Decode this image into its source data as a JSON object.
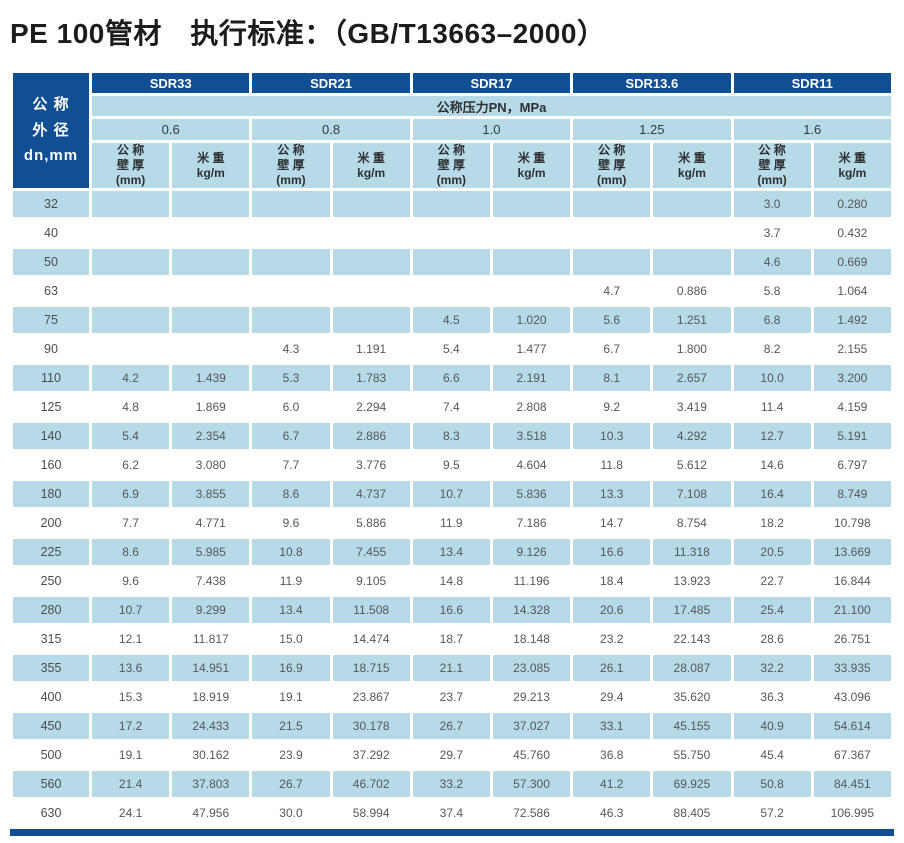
{
  "page": {
    "title": "PE 100管材　执行标准：（GB/T13663–2000）"
  },
  "table": {
    "left_header": "公 称\n外 径\ndn,mm",
    "pressure_label": "公称压力PN，MPa",
    "sdr_groups": [
      {
        "sdr": "SDR33",
        "pn": "0.6"
      },
      {
        "sdr": "SDR21",
        "pn": "0.8"
      },
      {
        "sdr": "SDR17",
        "pn": "1.0"
      },
      {
        "sdr": "SDR13.6",
        "pn": "1.25"
      },
      {
        "sdr": "SDR11",
        "pn": "1.6"
      }
    ],
    "col_headers": {
      "thickness": "公 称\n壁 厚\n(mm)",
      "weight": "米 重\nkg/m"
    },
    "rows": [
      {
        "dn": "32",
        "values": [
          "",
          "",
          "",
          "",
          "",
          "",
          "",
          "",
          "3.0",
          "0.280"
        ]
      },
      {
        "dn": "40",
        "values": [
          "",
          "",
          "",
          "",
          "",
          "",
          "",
          "",
          "3.7",
          "0.432"
        ]
      },
      {
        "dn": "50",
        "values": [
          "",
          "",
          "",
          "",
          "",
          "",
          "",
          "",
          "4.6",
          "0.669"
        ]
      },
      {
        "dn": "63",
        "values": [
          "",
          "",
          "",
          "",
          "",
          "",
          "4.7",
          "0.886",
          "5.8",
          "1.064"
        ]
      },
      {
        "dn": "75",
        "values": [
          "",
          "",
          "",
          "",
          "4.5",
          "1.020",
          "5.6",
          "1.251",
          "6.8",
          "1.492"
        ]
      },
      {
        "dn": "90",
        "values": [
          "",
          "",
          "4.3",
          "1.191",
          "5.4",
          "1.477",
          "6.7",
          "1.800",
          "8.2",
          "2.155"
        ]
      },
      {
        "dn": "110",
        "values": [
          "4.2",
          "1.439",
          "5.3",
          "1.783",
          "6.6",
          "2.191",
          "8.1",
          "2.657",
          "10.0",
          "3.200"
        ]
      },
      {
        "dn": "125",
        "values": [
          "4.8",
          "1.869",
          "6.0",
          "2.294",
          "7.4",
          "2.808",
          "9.2",
          "3.419",
          "11.4",
          "4.159"
        ]
      },
      {
        "dn": "140",
        "values": [
          "5.4",
          "2.354",
          "6.7",
          "2.886",
          "8.3",
          "3.518",
          "10.3",
          "4.292",
          "12.7",
          "5.191"
        ]
      },
      {
        "dn": "160",
        "values": [
          "6.2",
          "3.080",
          "7.7",
          "3.776",
          "9.5",
          "4.604",
          "11.8",
          "5.612",
          "14.6",
          "6.797"
        ]
      },
      {
        "dn": "180",
        "values": [
          "6.9",
          "3.855",
          "8.6",
          "4.737",
          "10.7",
          "5.836",
          "13.3",
          "7.108",
          "16.4",
          "8.749"
        ]
      },
      {
        "dn": "200",
        "values": [
          "7.7",
          "4.771",
          "9.6",
          "5.886",
          "11.9",
          "7.186",
          "14.7",
          "8.754",
          "18.2",
          "10.798"
        ]
      },
      {
        "dn": "225",
        "values": [
          "8.6",
          "5.985",
          "10.8",
          "7.455",
          "13.4",
          "9.126",
          "16.6",
          "11.318",
          "20.5",
          "13.669"
        ]
      },
      {
        "dn": "250",
        "values": [
          "9.6",
          "7.438",
          "11.9",
          "9.105",
          "14.8",
          "11.196",
          "18.4",
          "13.923",
          "22.7",
          "16.844"
        ]
      },
      {
        "dn": "280",
        "values": [
          "10.7",
          "9.299",
          "13.4",
          "11.508",
          "16.6",
          "14.328",
          "20.6",
          "17.485",
          "25.4",
          "21.100"
        ]
      },
      {
        "dn": "315",
        "values": [
          "12.1",
          "11.817",
          "15.0",
          "14.474",
          "18.7",
          "18.148",
          "23.2",
          "22.143",
          "28.6",
          "26.751"
        ]
      },
      {
        "dn": "355",
        "values": [
          "13.6",
          "14.951",
          "16.9",
          "18.715",
          "21.1",
          "23.085",
          "26.1",
          "28.087",
          "32.2",
          "33.935"
        ]
      },
      {
        "dn": "400",
        "values": [
          "15.3",
          "18.919",
          "19.1",
          "23.867",
          "23.7",
          "29.213",
          "29.4",
          "35.620",
          "36.3",
          "43.096"
        ]
      },
      {
        "dn": "450",
        "values": [
          "17.2",
          "24.433",
          "21.5",
          "30.178",
          "26.7",
          "37.027",
          "33.1",
          "45.155",
          "40.9",
          "54.614"
        ]
      },
      {
        "dn": "500",
        "values": [
          "19.1",
          "30.162",
          "23.9",
          "37.292",
          "29.7",
          "45.760",
          "36.8",
          "55.750",
          "45.4",
          "67.367"
        ]
      },
      {
        "dn": "560",
        "values": [
          "21.4",
          "37.803",
          "26.7",
          "46.702",
          "33.2",
          "57.300",
          "41.2",
          "69.925",
          "50.8",
          "84.451"
        ]
      },
      {
        "dn": "630",
        "values": [
          "24.1",
          "47.956",
          "30.0",
          "58.994",
          "37.4",
          "72.586",
          "46.3",
          "88.405",
          "57.2",
          "106.995"
        ]
      }
    ]
  },
  "colors": {
    "header_navy": "#104f93",
    "row_light_blue": "#b6dae8",
    "data_text_gray": "#56575a",
    "title_black": "#1c1c1c"
  }
}
